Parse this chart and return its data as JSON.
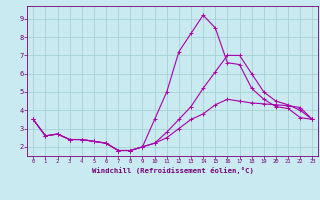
{
  "xlabel": "Windchill (Refroidissement éolien,°C)",
  "background_color": "#c8eaf0",
  "grid_color": "#a0ccd0",
  "line_color": "#aa00aa",
  "xlim": [
    -0.5,
    23.5
  ],
  "ylim": [
    1.5,
    9.7
  ],
  "yticks": [
    2,
    3,
    4,
    5,
    6,
    7,
    8,
    9
  ],
  "xticks": [
    0,
    1,
    2,
    3,
    4,
    5,
    6,
    7,
    8,
    9,
    10,
    11,
    12,
    13,
    14,
    15,
    16,
    17,
    18,
    19,
    20,
    21,
    22,
    23
  ],
  "series1_x": [
    0,
    1,
    2,
    3,
    4,
    5,
    6,
    7,
    8,
    9,
    10,
    11,
    12,
    13,
    14,
    15,
    16,
    17,
    18,
    19,
    20,
    21,
    22,
    23
  ],
  "series1_y": [
    3.5,
    2.6,
    2.7,
    2.4,
    2.4,
    2.3,
    2.2,
    1.8,
    1.8,
    2.0,
    2.2,
    2.5,
    3.0,
    3.5,
    3.8,
    4.3,
    4.6,
    4.5,
    4.4,
    4.35,
    4.3,
    4.25,
    4.15,
    3.5
  ],
  "series2_x": [
    0,
    1,
    2,
    3,
    4,
    5,
    6,
    7,
    8,
    9,
    10,
    11,
    12,
    13,
    14,
    15,
    16,
    17,
    18,
    19,
    20,
    21,
    22,
    23
  ],
  "series2_y": [
    3.5,
    2.6,
    2.7,
    2.4,
    2.4,
    2.3,
    2.2,
    1.8,
    1.8,
    2.0,
    3.5,
    5.0,
    7.2,
    8.2,
    9.2,
    8.5,
    6.6,
    6.5,
    5.2,
    4.6,
    4.2,
    4.1,
    3.6,
    3.5
  ],
  "series3_x": [
    0,
    1,
    2,
    3,
    4,
    5,
    6,
    7,
    8,
    9,
    10,
    11,
    12,
    13,
    14,
    15,
    16,
    17,
    18,
    19,
    20,
    21,
    22,
    23
  ],
  "series3_y": [
    3.5,
    2.6,
    2.7,
    2.4,
    2.4,
    2.3,
    2.2,
    1.8,
    1.8,
    2.0,
    2.2,
    2.8,
    3.5,
    4.2,
    5.2,
    6.1,
    7.0,
    7.0,
    6.0,
    5.0,
    4.5,
    4.3,
    4.0,
    3.5
  ]
}
